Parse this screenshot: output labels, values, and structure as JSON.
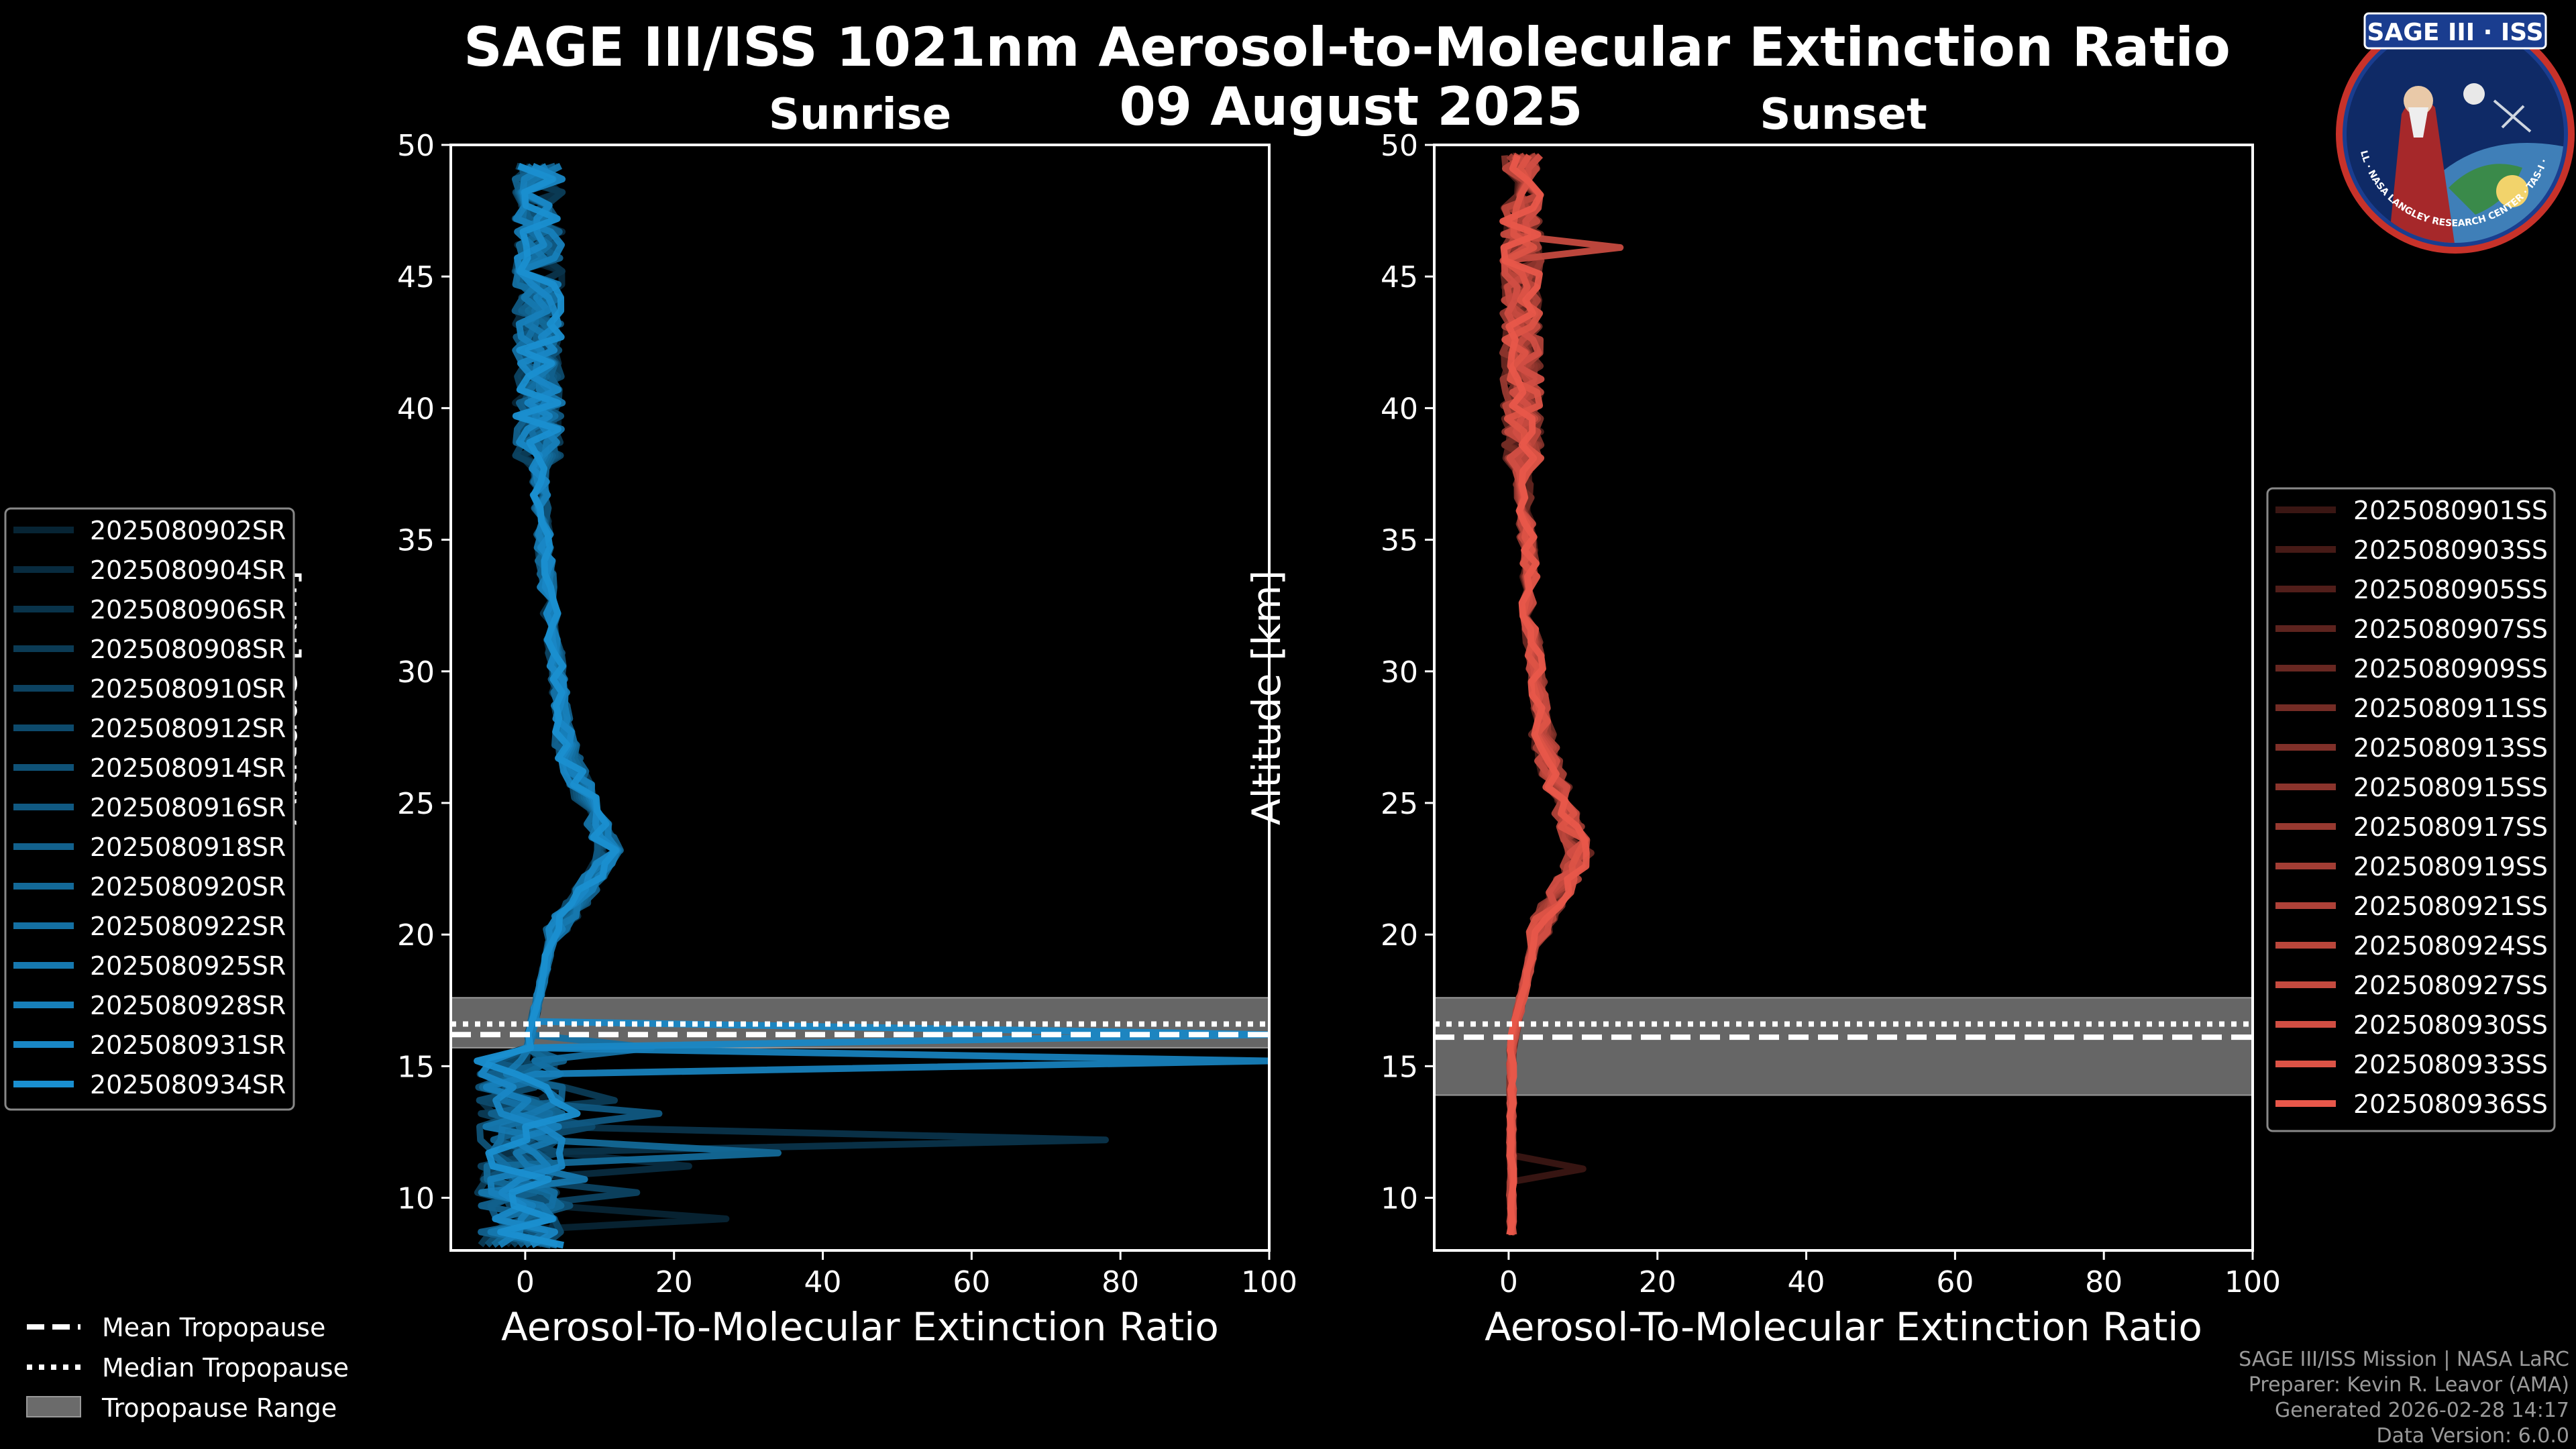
{
  "title": "SAGE III/ISS 1021nm Aerosol-to-Molecular Extinction Ratio",
  "date": "09 August 2025",
  "logo": {
    "text": "SAGE III · ISS",
    "ring_text": "BALL · NASA LANGLEY RESEARCH CENTER · TAS-I · ESA"
  },
  "footer": {
    "line1": "SAGE III/ISS Mission | NASA LaRC",
    "line2": "Preparer: Kevin R. Leavor (AMA)",
    "line3": "Generated 2026-02-28 14:17",
    "line4": "Data Version: 6.0.0"
  },
  "tropopause_legend": {
    "mean": "Mean Tropopause",
    "median": "Median Tropopause",
    "range": "Tropopause Range"
  },
  "chart_data": [
    {
      "type": "line",
      "panel": "sunrise",
      "title": "Sunrise",
      "xlabel": "Aerosol-To-Molecular Extinction Ratio",
      "ylabel": "Altitude [km]",
      "xlim": [
        -10,
        100
      ],
      "ylim": [
        8,
        50
      ],
      "xticks": [
        0,
        20,
        40,
        60,
        80,
        100
      ],
      "yticks": [
        10,
        15,
        20,
        25,
        30,
        35,
        40,
        45,
        50
      ],
      "legend_position": "left",
      "tropopause": {
        "mean": 16.2,
        "median": 16.6,
        "range": [
          15.7,
          17.6
        ]
      },
      "base_color": "#1a8fd0",
      "series": [
        {
          "name": "2025080902SR",
          "spike": {
            "alt": 9.2,
            "val": 27
          }
        },
        {
          "name": "2025080904SR",
          "spike": {
            "alt": 11.2,
            "val": 22
          }
        },
        {
          "name": "2025080906SR",
          "spike": {
            "alt": 12.0,
            "val": 78
          }
        },
        {
          "name": "2025080908SR",
          "spike": {
            "alt": 13.6,
            "val": 12
          }
        },
        {
          "name": "2025080910SR",
          "spike": {
            "alt": 10.3,
            "val": 15
          }
        },
        {
          "name": "2025080912SR",
          "spike": {
            "alt": 12.8,
            "val": 9
          }
        },
        {
          "name": "2025080914SR",
          "spike": {
            "alt": 9.8,
            "val": 6
          }
        },
        {
          "name": "2025080916SR",
          "spike": {
            "alt": 13.0,
            "val": 18
          }
        },
        {
          "name": "2025080918SR",
          "spike": {
            "alt": 14.2,
            "val": 5
          }
        },
        {
          "name": "2025080920SR",
          "spike": {
            "alt": 11.6,
            "val": 34
          }
        },
        {
          "name": "2025080922SR",
          "spike": {
            "alt": 15.5,
            "val": 17
          }
        },
        {
          "name": "2025080925SR",
          "spike": {
            "alt": 10.6,
            "val": 8
          }
        },
        {
          "name": "2025080928SR",
          "spike": {
            "alt": 15.0,
            "val": 100
          }
        },
        {
          "name": "2025080931SR",
          "spike": {
            "alt": 16.2,
            "val": 100
          }
        },
        {
          "name": "2025080934SR",
          "spike": {
            "alt": 13.4,
            "val": 7
          }
        }
      ]
    },
    {
      "type": "line",
      "panel": "sunset",
      "title": "Sunset",
      "xlabel": "Aerosol-To-Molecular Extinction Ratio",
      "ylabel": "Altitude [km]",
      "xlim": [
        -10,
        100
      ],
      "ylim": [
        8,
        50
      ],
      "xticks": [
        0,
        20,
        40,
        60,
        80,
        100
      ],
      "yticks": [
        10,
        15,
        20,
        25,
        30,
        35,
        40,
        45,
        50
      ],
      "legend_position": "right",
      "tropopause": {
        "mean": 16.1,
        "median": 16.6,
        "range": [
          13.9,
          17.6
        ]
      },
      "base_color": "#e8574a",
      "series": [
        {
          "name": "2025080901SS",
          "spike": {
            "alt": 11.1,
            "val": 10
          }
        },
        {
          "name": "2025080903SS",
          "spike": null
        },
        {
          "name": "2025080905SS",
          "spike": null
        },
        {
          "name": "2025080907SS",
          "spike": null
        },
        {
          "name": "2025080909SS",
          "spike": null
        },
        {
          "name": "2025080911SS",
          "spike": null
        },
        {
          "name": "2025080913SS",
          "spike": null
        },
        {
          "name": "2025080915SS",
          "spike": null
        },
        {
          "name": "2025080917SS",
          "spike": null
        },
        {
          "name": "2025080919SS",
          "spike": null
        },
        {
          "name": "2025080921SS",
          "spike": null
        },
        {
          "name": "2025080924SS",
          "spike": null
        },
        {
          "name": "2025080927SS",
          "spike": {
            "alt": 46.0,
            "val": 15
          }
        },
        {
          "name": "2025080930SS",
          "spike": null
        },
        {
          "name": "2025080933SS",
          "spike": null
        },
        {
          "name": "2025080936SS",
          "spike": null
        }
      ]
    }
  ]
}
